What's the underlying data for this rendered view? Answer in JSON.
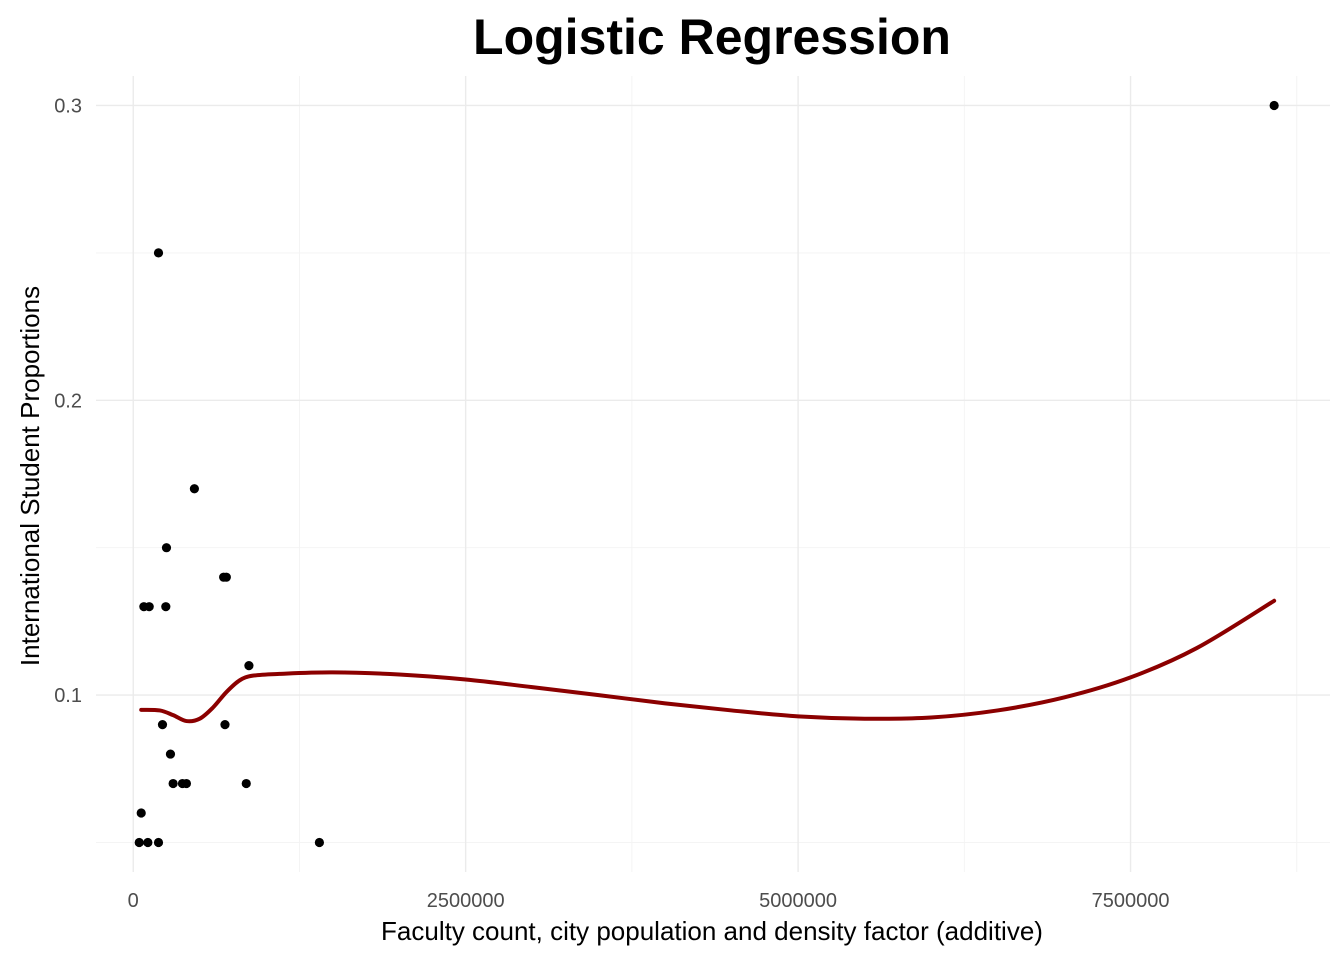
{
  "chart_data": {
    "type": "scatter",
    "title": "Logistic Regression",
    "xlabel": "Faculty count, city population and density factor (additive)",
    "ylabel": "International Student Proportions",
    "xlim": [
      -280000,
      9000000
    ],
    "ylim": [
      0.04,
      0.31
    ],
    "x_ticks": [
      0,
      2500000,
      5000000,
      7500000
    ],
    "x_tick_labels": [
      "0",
      "2500000",
      "5000000",
      "7500000"
    ],
    "y_ticks": [
      0.1,
      0.2,
      0.3
    ],
    "y_tick_labels": [
      "0.1",
      "0.2",
      "0.3"
    ],
    "x_minor_ticks": [
      1250000,
      3750000,
      6250000,
      8750000
    ],
    "y_minor_ticks": [
      0.05,
      0.15,
      0.25
    ],
    "grid": true,
    "colors": {
      "points": "#000000",
      "smooth": "#8b0000",
      "grid": "#ebebeb"
    },
    "points": [
      {
        "x": 60000,
        "y": 0.06
      },
      {
        "x": 45000,
        "y": 0.05
      },
      {
        "x": 110000,
        "y": 0.05
      },
      {
        "x": 190000,
        "y": 0.05
      },
      {
        "x": 80000,
        "y": 0.13
      },
      {
        "x": 120000,
        "y": 0.13
      },
      {
        "x": 190000,
        "y": 0.25
      },
      {
        "x": 220000,
        "y": 0.09
      },
      {
        "x": 250000,
        "y": 0.15
      },
      {
        "x": 245000,
        "y": 0.13
      },
      {
        "x": 280000,
        "y": 0.08
      },
      {
        "x": 300000,
        "y": 0.07
      },
      {
        "x": 370000,
        "y": 0.07
      },
      {
        "x": 400000,
        "y": 0.07
      },
      {
        "x": 460000,
        "y": 0.17
      },
      {
        "x": 680000,
        "y": 0.14
      },
      {
        "x": 700000,
        "y": 0.14
      },
      {
        "x": 690000,
        "y": 0.09
      },
      {
        "x": 850000,
        "y": 0.07
      },
      {
        "x": 870000,
        "y": 0.11
      },
      {
        "x": 1400000,
        "y": 0.05
      },
      {
        "x": 8580000,
        "y": 0.3
      }
    ],
    "smooth_line": {
      "x": [
        60000,
        200000,
        300000,
        400000,
        500000,
        600000,
        700000,
        800000,
        900000,
        1100000,
        1500000,
        2000000,
        2500000,
        3000000,
        3500000,
        4000000,
        4500000,
        5000000,
        5500000,
        6000000,
        6500000,
        7000000,
        7500000,
        8000000,
        8580000
      ],
      "y": [
        0.095,
        0.0948,
        0.0932,
        0.0912,
        0.092,
        0.0958,
        0.101,
        0.105,
        0.1066,
        0.1072,
        0.1077,
        0.107,
        0.1053,
        0.1027,
        0.1,
        0.0972,
        0.0948,
        0.0928,
        0.092,
        0.0924,
        0.0948,
        0.0992,
        0.106,
        0.116,
        0.132
      ]
    }
  }
}
